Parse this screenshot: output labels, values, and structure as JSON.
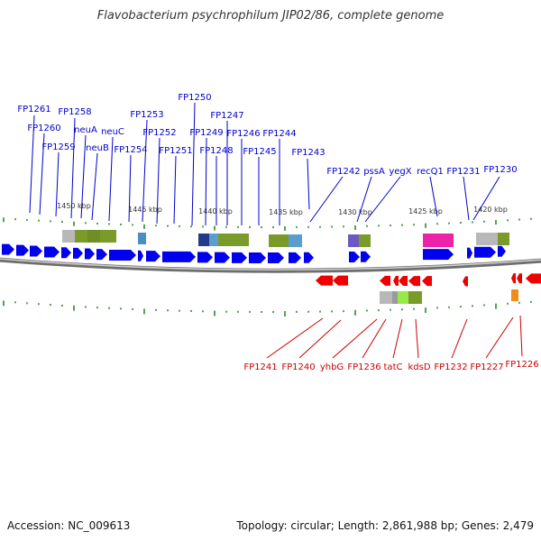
{
  "title": "Flavobacterium psychrophilum JIP02/86, complete genome",
  "footer": {
    "accession": "Accession: NC_009613",
    "summary": "Topology: circular; Length: 2,861,988 bp; Genes: 2,479"
  },
  "colors": {
    "forward_gene": "#0000ee",
    "reverse_gene": "#ee0000",
    "forward_label": "#0000cc",
    "reverse_label": "#cc0000",
    "tick": "#2a8a2a",
    "backbone": "#6e6e6e"
  },
  "scale_labels": [
    "1450 kbp",
    "1445 kbp",
    "1440 kbp",
    "1435 kbp",
    "1430 kbp",
    "1425 kbp",
    "1420 kbp"
  ],
  "forward_labels": [
    "FP1261",
    "FP1260",
    "FP1259",
    "FP1258",
    "neuA",
    "neuB",
    "neuC",
    "FP1254",
    "FP1253",
    "FP1252",
    "FP1251",
    "FP1250",
    "FP1249",
    "FP1248",
    "FP1247",
    "FP1246",
    "FP1245",
    "FP1244",
    "FP1243",
    "FP1242",
    "pssA",
    "yegX",
    "recQ1",
    "FP1231",
    "FP1230"
  ],
  "reverse_labels": [
    "FP1241",
    "FP1240",
    "yhbG",
    "FP1236",
    "tatC",
    "kdsD",
    "FP1232",
    "FP1227",
    "FP1226"
  ]
}
